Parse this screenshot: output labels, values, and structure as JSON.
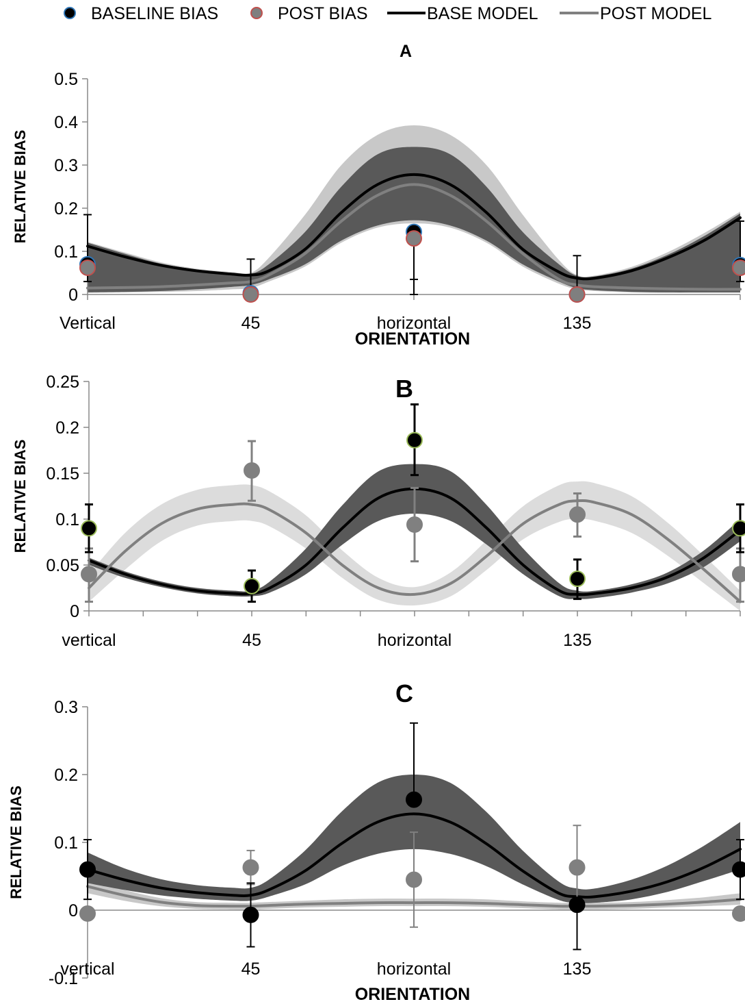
{
  "legend": {
    "items": [
      {
        "label": "BASELINE BIAS",
        "kind": "marker",
        "fill": "#000000",
        "stroke": "#2e75b6"
      },
      {
        "label": "POST BIAS",
        "kind": "marker",
        "fill": "#7f7f7f",
        "stroke": "#c0504d"
      },
      {
        "label": "BASE MODEL",
        "kind": "line",
        "color": "#000000"
      },
      {
        "label": "POST MODEL",
        "kind": "line",
        "color": "#808080"
      }
    ]
  },
  "colors": {
    "base_band": "#595959",
    "post_band": "#c8c8c8",
    "post_band_light": "#dcdcdc",
    "base_line": "#000000",
    "post_line": "#808080"
  },
  "chart_data": [
    {
      "id": "A",
      "type": "line",
      "title": "A",
      "ylabel": "RELATIVE BIAS",
      "xlabel": "ORIENTATION",
      "x_tick_labels": [
        "Vertical",
        "45",
        "horizontal",
        "135",
        ""
      ],
      "x_range": [
        0,
        180
      ],
      "ylim": [
        0,
        0.5
      ],
      "yticks": [
        "0",
        "0.1",
        "0.2",
        "0.3",
        "0.4",
        "0.5"
      ],
      "ytick_values": [
        0,
        0.1,
        0.2,
        0.3,
        0.4,
        0.5
      ],
      "minor_x_ticks": false,
      "band_order": "post_first",
      "series": [
        {
          "name": "BASE MODEL",
          "role": "base",
          "x": [
            0,
            10,
            20,
            30,
            40,
            45,
            50,
            60,
            70,
            80,
            90,
            100,
            110,
            120,
            130,
            135,
            140,
            150,
            160,
            170,
            180
          ],
          "values": [
            0.112,
            0.088,
            0.068,
            0.055,
            0.047,
            0.045,
            0.055,
            0.105,
            0.19,
            0.255,
            0.278,
            0.255,
            0.19,
            0.105,
            0.052,
            0.038,
            0.038,
            0.055,
            0.085,
            0.125,
            0.178
          ],
          "band_upper": [
            0.12,
            0.095,
            0.072,
            0.058,
            0.05,
            0.048,
            0.07,
            0.145,
            0.25,
            0.325,
            0.342,
            0.325,
            0.25,
            0.145,
            0.07,
            0.043,
            0.042,
            0.06,
            0.092,
            0.135,
            0.188
          ],
          "band_lower": [
            0.005,
            0.006,
            0.008,
            0.012,
            0.018,
            0.022,
            0.035,
            0.07,
            0.125,
            0.16,
            0.172,
            0.16,
            0.125,
            0.07,
            0.03,
            0.015,
            0.01,
            0.006,
            0.005,
            0.005,
            0.005
          ]
        },
        {
          "name": "POST MODEL",
          "role": "post",
          "x": [
            0,
            10,
            20,
            30,
            40,
            45,
            50,
            60,
            70,
            80,
            90,
            100,
            110,
            120,
            130,
            135,
            140,
            150,
            160,
            170,
            180
          ],
          "values": [
            0.015,
            0.016,
            0.018,
            0.022,
            0.027,
            0.03,
            0.045,
            0.095,
            0.17,
            0.23,
            0.255,
            0.23,
            0.17,
            0.095,
            0.035,
            0.022,
            0.018,
            0.015,
            0.013,
            0.012,
            0.012
          ],
          "band_upper": [
            0.122,
            0.098,
            0.075,
            0.06,
            0.052,
            0.05,
            0.085,
            0.185,
            0.3,
            0.37,
            0.392,
            0.37,
            0.3,
            0.185,
            0.08,
            0.045,
            0.044,
            0.064,
            0.098,
            0.142,
            0.192
          ],
          "band_lower": [
            0.004,
            0.005,
            0.006,
            0.008,
            0.012,
            0.015,
            0.03,
            0.065,
            0.12,
            0.155,
            0.165,
            0.155,
            0.12,
            0.065,
            0.025,
            0.012,
            0.008,
            0.005,
            0.004,
            0.004,
            0.004
          ]
        }
      ],
      "points": [
        {
          "name": "BASELINE BIAS",
          "role": "base",
          "x": [
            0,
            45,
            90,
            135,
            180
          ],
          "values": [
            0.07,
            0.003,
            0.145,
            0.0,
            0.068
          ],
          "err_hi": [
            0.185,
            0.082,
            0.145,
            0.09,
            0.17
          ],
          "err_lo": [
            0.03,
            0.003,
            0.035,
            0.0,
            0.03
          ],
          "fill": "#000000",
          "stroke": "#2e75b6",
          "err_color": "#000000"
        },
        {
          "name": "POST BIAS",
          "role": "post",
          "x": [
            0,
            45,
            90,
            135,
            180
          ],
          "values": [
            0.062,
            0.0,
            0.13,
            0.0,
            0.062
          ],
          "err_hi": [
            0.062,
            0.0,
            0.13,
            0.0,
            0.062
          ],
          "err_lo": [
            0.062,
            0.0,
            0.0,
            0.0,
            0.062
          ],
          "fill": "#7f7f7f",
          "stroke": "#c0504d",
          "err_color": "#000000"
        }
      ]
    },
    {
      "id": "B",
      "type": "line",
      "title": "B",
      "ylabel": "RELATIVE BIAS",
      "xlabel": "",
      "x_tick_labels": [
        "vertical",
        "45",
        "horizontal",
        "135",
        ""
      ],
      "x_range": [
        0,
        180
      ],
      "ylim": [
        0,
        0.25
      ],
      "yticks": [
        "0",
        "0.05",
        "0.1",
        "0.15",
        "0.2",
        "0.25"
      ],
      "ytick_values": [
        0,
        0.05,
        0.1,
        0.15,
        0.2,
        0.25
      ],
      "minor_x_ticks": true,
      "band_order": "post_first",
      "series": [
        {
          "name": "BASE MODEL",
          "role": "base",
          "x": [
            0,
            10,
            20,
            30,
            40,
            45,
            50,
            60,
            70,
            80,
            90,
            100,
            110,
            120,
            130,
            135,
            140,
            150,
            160,
            170,
            180
          ],
          "values": [
            0.055,
            0.04,
            0.029,
            0.022,
            0.019,
            0.019,
            0.025,
            0.05,
            0.09,
            0.123,
            0.133,
            0.123,
            0.09,
            0.05,
            0.022,
            0.018,
            0.019,
            0.025,
            0.037,
            0.058,
            0.088
          ],
          "band_upper": [
            0.058,
            0.043,
            0.032,
            0.025,
            0.022,
            0.022,
            0.032,
            0.068,
            0.115,
            0.152,
            0.16,
            0.152,
            0.115,
            0.068,
            0.03,
            0.022,
            0.022,
            0.029,
            0.042,
            0.066,
            0.1
          ],
          "band_lower": [
            0.05,
            0.036,
            0.026,
            0.019,
            0.016,
            0.016,
            0.02,
            0.04,
            0.072,
            0.098,
            0.106,
            0.098,
            0.072,
            0.04,
            0.016,
            0.013,
            0.014,
            0.02,
            0.03,
            0.048,
            0.076
          ]
        },
        {
          "name": "POST MODEL",
          "role": "post",
          "x": [
            0,
            10,
            20,
            30,
            40,
            45,
            50,
            60,
            70,
            80,
            90,
            100,
            110,
            120,
            130,
            135,
            140,
            150,
            160,
            170,
            180
          ],
          "values": [
            0.025,
            0.065,
            0.095,
            0.111,
            0.116,
            0.116,
            0.11,
            0.085,
            0.05,
            0.025,
            0.018,
            0.03,
            0.06,
            0.095,
            0.116,
            0.12,
            0.118,
            0.105,
            0.078,
            0.045,
            0.01
          ],
          "band_upper": [
            0.04,
            0.085,
            0.116,
            0.132,
            0.137,
            0.137,
            0.13,
            0.104,
            0.066,
            0.036,
            0.026,
            0.042,
            0.077,
            0.114,
            0.137,
            0.141,
            0.139,
            0.125,
            0.096,
            0.06,
            0.022
          ],
          "band_lower": [
            0.01,
            0.045,
            0.076,
            0.093,
            0.098,
            0.098,
            0.092,
            0.068,
            0.036,
            0.012,
            0.006,
            0.016,
            0.045,
            0.078,
            0.097,
            0.1,
            0.098,
            0.085,
            0.06,
            0.03,
            0.0
          ]
        }
      ],
      "points": [
        {
          "name": "BASELINE BIAS",
          "role": "base",
          "x": [
            0,
            45,
            90,
            135,
            180
          ],
          "values": [
            0.09,
            0.027,
            0.186,
            0.035,
            0.09
          ],
          "err_hi": [
            0.116,
            0.044,
            0.225,
            0.056,
            0.116
          ],
          "err_lo": [
            0.064,
            0.01,
            0.148,
            0.013,
            0.064
          ],
          "fill": "#000000",
          "stroke": "#9bbb59",
          "err_color": "#000000"
        },
        {
          "name": "POST BIAS",
          "role": "post",
          "x": [
            0,
            45,
            90,
            135,
            180
          ],
          "values": [
            0.04,
            0.153,
            0.094,
            0.105,
            0.04
          ],
          "err_hi": [
            0.068,
            0.185,
            0.134,
            0.128,
            0.068
          ],
          "err_lo": [
            0.01,
            0.12,
            0.054,
            0.081,
            0.01
          ],
          "fill": "#808080",
          "stroke": "#808080",
          "err_color": "#808080"
        }
      ]
    },
    {
      "id": "C",
      "type": "line",
      "title": "C",
      "ylabel": "RELATIVE BIAS",
      "xlabel": "ORIENTATION",
      "x_tick_labels": [
        "vertical",
        "45",
        "horizontal",
        "135",
        ""
      ],
      "x_range": [
        0,
        180
      ],
      "ylim": [
        -0.1,
        0.3
      ],
      "yticks": [
        "-0.1",
        "0",
        "0.1",
        "0.2",
        "0.3"
      ],
      "ytick_values": [
        -0.1,
        0,
        0.1,
        0.2,
        0.3
      ],
      "minor_x_ticks": false,
      "band_order": "post_first",
      "series": [
        {
          "name": "BASE MODEL",
          "role": "base",
          "x": [
            0,
            10,
            20,
            30,
            40,
            45,
            50,
            60,
            70,
            80,
            90,
            100,
            110,
            120,
            130,
            135,
            140,
            150,
            160,
            170,
            180
          ],
          "values": [
            0.06,
            0.045,
            0.033,
            0.026,
            0.022,
            0.022,
            0.03,
            0.058,
            0.098,
            0.13,
            0.142,
            0.13,
            0.098,
            0.058,
            0.025,
            0.02,
            0.02,
            0.028,
            0.042,
            0.063,
            0.09
          ],
          "band_upper": [
            0.085,
            0.062,
            0.046,
            0.037,
            0.033,
            0.033,
            0.045,
            0.088,
            0.145,
            0.188,
            0.2,
            0.188,
            0.145,
            0.088,
            0.042,
            0.032,
            0.032,
            0.045,
            0.066,
            0.095,
            0.13
          ],
          "band_lower": [
            0.04,
            0.03,
            0.022,
            0.017,
            0.014,
            0.014,
            0.02,
            0.038,
            0.065,
            0.083,
            0.09,
            0.083,
            0.065,
            0.038,
            0.015,
            0.011,
            0.011,
            0.016,
            0.027,
            0.043,
            0.06
          ]
        },
        {
          "name": "POST MODEL",
          "role": "post",
          "x": [
            0,
            10,
            20,
            30,
            40,
            45,
            50,
            60,
            70,
            80,
            90,
            100,
            110,
            120,
            130,
            135,
            140,
            150,
            160,
            170,
            180
          ],
          "values": [
            0.035,
            0.022,
            0.012,
            0.007,
            0.006,
            0.006,
            0.007,
            0.009,
            0.01,
            0.011,
            0.011,
            0.011,
            0.01,
            0.008,
            0.006,
            0.006,
            0.006,
            0.007,
            0.009,
            0.012,
            0.016
          ],
          "band_upper": [
            0.045,
            0.03,
            0.018,
            0.012,
            0.011,
            0.011,
            0.012,
            0.014,
            0.016,
            0.017,
            0.017,
            0.017,
            0.016,
            0.013,
            0.011,
            0.011,
            0.011,
            0.012,
            0.015,
            0.019,
            0.025
          ],
          "band_lower": [
            0.025,
            0.014,
            0.006,
            0.002,
            0.001,
            0.001,
            0.002,
            0.004,
            0.005,
            0.006,
            0.006,
            0.006,
            0.005,
            0.003,
            0.001,
            0.001,
            0.001,
            0.002,
            0.004,
            0.006,
            0.008
          ]
        }
      ],
      "points": [
        {
          "name": "BASELINE BIAS",
          "role": "base",
          "x": [
            0,
            45,
            90,
            135,
            180
          ],
          "values": [
            0.06,
            -0.007,
            0.163,
            0.008,
            0.06
          ],
          "err_hi": [
            0.104,
            0.04,
            0.276,
            0.008,
            0.104
          ],
          "err_lo": [
            0.016,
            -0.054,
            0.163,
            -0.058,
            0.016
          ],
          "fill": "#000000",
          "stroke": "#000000",
          "err_color": "#000000"
        },
        {
          "name": "POST BIAS",
          "role": "post",
          "x": [
            0,
            45,
            90,
            135,
            180
          ],
          "values": [
            -0.005,
            0.063,
            0.045,
            0.063,
            -0.005
          ],
          "err_hi": [
            -0.005,
            0.088,
            0.115,
            0.125,
            -0.005
          ],
          "err_lo": [
            -0.005,
            0.038,
            -0.025,
            0.0,
            -0.005
          ],
          "fill": "#808080",
          "stroke": "#808080",
          "err_color": "#808080"
        }
      ]
    }
  ]
}
